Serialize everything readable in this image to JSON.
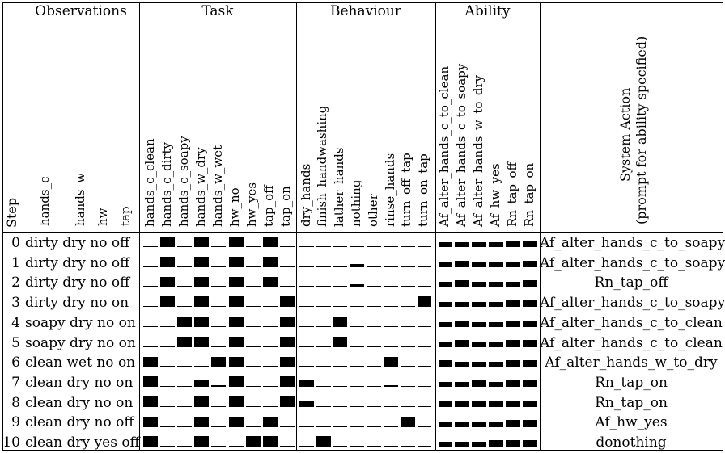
{
  "headers": {
    "step": "Step",
    "groups": [
      "Observations",
      "Task",
      "Behaviour",
      "Ability"
    ],
    "system_action": [
      "System Action",
      "(prompt for ability specified)"
    ]
  },
  "columns": {
    "observations": [
      "hands_c",
      "hands_w",
      "hw",
      "tap"
    ],
    "task": [
      "hands_c_clean",
      "hands_c_dirty",
      "hands_c_soapy",
      "hands_w_dry",
      "hands_w_wet",
      "hw_no",
      "hw_yes",
      "tap_off",
      "tap_on"
    ],
    "behaviour": [
      "dry_hands",
      "finish_handwashing",
      "lather_hands",
      "nothing",
      "other",
      "rinse_hands",
      "turn_off_tap",
      "turn_on_tap"
    ],
    "ability": [
      "Af_alter_hands_c_to_clean",
      "Af_alter_hands_c_to_soapy",
      "Af_alter_hands_w_to_dry",
      "Af_hw_yes",
      "Rn_tap_off",
      "Rn_tap_on"
    ]
  },
  "rows": [
    {
      "step": "0",
      "obs": [
        "dirty",
        "dry",
        "no",
        "off"
      ],
      "task": [
        0,
        1,
        0,
        1,
        0,
        1,
        0,
        1,
        0
      ],
      "beh": [
        0,
        0,
        0,
        0,
        0,
        0,
        0,
        0
      ],
      "abil": [
        0.5,
        0.5,
        0.5,
        0.5,
        0.65,
        0.65
      ],
      "action": "Af_alter_hands_c_to_soapy"
    },
    {
      "step": "1",
      "obs": [
        "dirty",
        "dry",
        "no",
        "off"
      ],
      "task": [
        0,
        1,
        0,
        1,
        0,
        1,
        0,
        1,
        0
      ],
      "beh": [
        0.15,
        0.15,
        0.15,
        0.3,
        0.15,
        0.15,
        0.15,
        0.15
      ],
      "abil": [
        0.5,
        0.65,
        0.5,
        0.5,
        0.5,
        0.65
      ],
      "action": "Af_alter_hands_c_to_soapy"
    },
    {
      "step": "2",
      "obs": [
        "dirty",
        "dry",
        "no",
        "off"
      ],
      "task": [
        0,
        1,
        0,
        1,
        0,
        1,
        0,
        1,
        0
      ],
      "beh": [
        0.15,
        0.15,
        0.15,
        0.3,
        0.15,
        0.15,
        0.15,
        0.15
      ],
      "abil": [
        0.5,
        0.65,
        0.5,
        0.5,
        0.5,
        0.65
      ],
      "action": "Rn_tap_off"
    },
    {
      "step": "3",
      "obs": [
        "dirty",
        "dry",
        "no",
        "on"
      ],
      "task": [
        0,
        1,
        0,
        1,
        0,
        1,
        0,
        0,
        1
      ],
      "beh": [
        0,
        0,
        0,
        0,
        0,
        0,
        0,
        1
      ],
      "abil": [
        0.5,
        0.5,
        0.5,
        0.5,
        0.65,
        0.65
      ],
      "action": "Af_alter_hands_c_to_soapy"
    },
    {
      "step": "4",
      "obs": [
        "soapy",
        "dry",
        "no",
        "on"
      ],
      "task": [
        0,
        0,
        1,
        1,
        0,
        1,
        0,
        0,
        1
      ],
      "beh": [
        0,
        0,
        1,
        0,
        0,
        0,
        0,
        0
      ],
      "abil": [
        0.5,
        0.65,
        0.5,
        0.5,
        0.65,
        0.65
      ],
      "action": "Af_alter_hands_c_to_clean"
    },
    {
      "step": "5",
      "obs": [
        "soapy",
        "dry",
        "no",
        "on"
      ],
      "task": [
        0,
        0,
        1,
        1,
        0,
        1,
        0,
        0,
        1
      ],
      "beh": [
        0,
        0,
        1,
        0,
        0,
        0,
        0,
        0
      ],
      "abil": [
        0.5,
        0.65,
        0.5,
        0.5,
        0.65,
        0.65
      ],
      "action": "Af_alter_hands_c_to_clean"
    },
    {
      "step": "6",
      "obs": [
        "clean",
        "wet",
        "no",
        "on"
      ],
      "task": [
        1,
        0,
        0,
        0,
        1,
        1,
        0,
        0,
        1
      ],
      "beh": [
        0,
        0,
        0,
        0,
        0,
        1,
        0,
        0
      ],
      "abil": [
        0.65,
        0.5,
        0.5,
        0.5,
        0.65,
        0.65
      ],
      "action": "Af_alter_hands_w_to_dry"
    },
    {
      "step": "7",
      "obs": [
        "clean",
        "dry",
        "no",
        "on"
      ],
      "task": [
        1,
        0,
        0,
        0.6,
        0.2,
        1,
        0,
        0,
        1
      ],
      "beh": [
        0.6,
        0,
        0,
        0,
        0,
        0.15,
        0,
        0
      ],
      "abil": [
        0.5,
        0.5,
        0.65,
        0.5,
        0.65,
        0.65
      ],
      "action": "Rn_tap_on"
    },
    {
      "step": "8",
      "obs": [
        "clean",
        "dry",
        "no",
        "on"
      ],
      "task": [
        1,
        0,
        0,
        1,
        0,
        1,
        0,
        0,
        1
      ],
      "beh": [
        0.6,
        0,
        0,
        0,
        0,
        0,
        0,
        0
      ],
      "abil": [
        0.5,
        0.5,
        0.5,
        0.5,
        0.65,
        0.65
      ],
      "action": "Rn_tap_on"
    },
    {
      "step": "9",
      "obs": [
        "clean",
        "dry",
        "no",
        "off"
      ],
      "task": [
        1,
        0,
        0,
        1,
        0,
        1,
        0,
        1,
        0
      ],
      "beh": [
        0,
        0,
        0,
        0,
        0,
        0,
        1,
        0
      ],
      "abil": [
        0.5,
        0.5,
        0.5,
        0.5,
        0.65,
        0.65
      ],
      "action": "Af_hw_yes"
    },
    {
      "step": "10",
      "obs": [
        "clean",
        "dry",
        "yes",
        "off"
      ],
      "task": [
        1,
        0,
        0,
        1,
        0,
        0,
        1,
        1,
        0
      ],
      "beh": [
        0,
        1,
        0,
        0,
        0,
        0,
        0,
        0
      ],
      "abil": [
        0.5,
        0.5,
        0.5,
        0.65,
        0.65,
        0.65
      ],
      "action": "donothing"
    }
  ]
}
